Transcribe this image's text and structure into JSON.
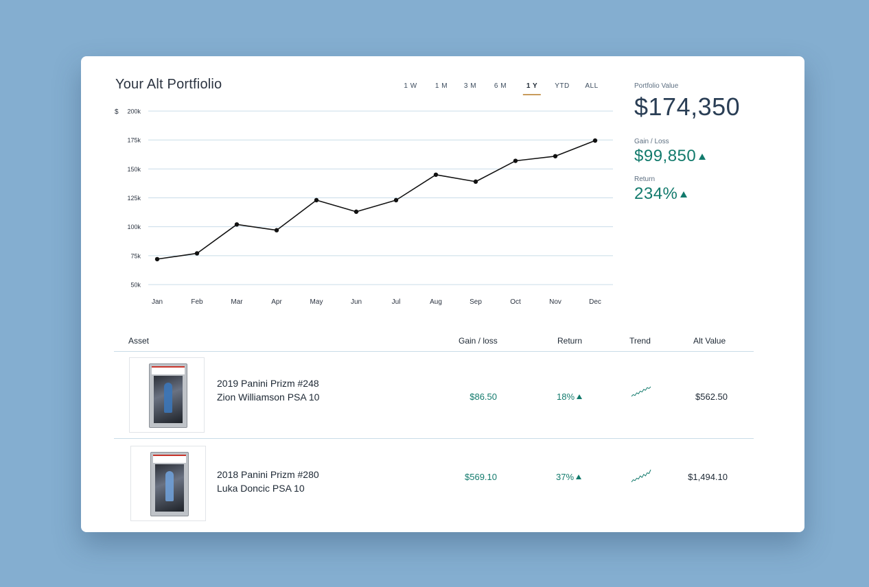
{
  "portfolio": {
    "title": "Your Alt Portfiolio"
  },
  "ranges": [
    {
      "label": "1 W",
      "active": false
    },
    {
      "label": "1 M",
      "active": false
    },
    {
      "label": "3 M",
      "active": false
    },
    {
      "label": "6 M",
      "active": false
    },
    {
      "label": "1 Y",
      "active": true
    },
    {
      "label": "YTD",
      "active": false
    },
    {
      "label": "ALL",
      "active": false
    }
  ],
  "summary": {
    "value_label": "Portfolio Value",
    "value": "$174,350",
    "gain_label": "Gain / Loss",
    "gain": "$99,850",
    "return_label": "Return",
    "return": "234%"
  },
  "chart_data": {
    "type": "line",
    "categories": [
      "Jan",
      "Feb",
      "Mar",
      "Apr",
      "May",
      "Jun",
      "Jul",
      "Aug",
      "Sep",
      "Oct",
      "Nov",
      "Dec"
    ],
    "values": [
      72000,
      77000,
      102000,
      97000,
      123000,
      113000,
      123000,
      145000,
      139000,
      157000,
      161000,
      174500
    ],
    "y_ticks": [
      "200k",
      "175k",
      "150k",
      "125k",
      "100k",
      "75k",
      "50k"
    ],
    "y_unit": "$",
    "ylim": [
      50000,
      200000
    ],
    "grid": true,
    "line_color": "#111111",
    "grid_color": "#c8dce8"
  },
  "table": {
    "headers": {
      "asset": "Asset",
      "gain": "Gain / loss",
      "return": "Return",
      "trend": "Trend",
      "value": "Alt Value"
    },
    "rows": [
      {
        "name_line1": "2019 Panini Prizm #248",
        "name_line2": "Zion Williamson PSA 10",
        "gain": "$86.50",
        "return": "18%",
        "trend": [
          3,
          5,
          4,
          7,
          6,
          9,
          8,
          11,
          10,
          13,
          12,
          14
        ],
        "value": "$562.50"
      },
      {
        "name_line1": "2018 Panini Prizm #280",
        "name_line2": "Luka Doncic PSA 10",
        "gain": "$569.10",
        "return": "37%",
        "trend": [
          1,
          4,
          3,
          6,
          5,
          9,
          7,
          11,
          9,
          13,
          12,
          17
        ],
        "value": "$1,494.10"
      }
    ]
  },
  "colors": {
    "accent_green": "#127a6c",
    "active_underline": "#c89b5b",
    "background": "#84aed0"
  }
}
